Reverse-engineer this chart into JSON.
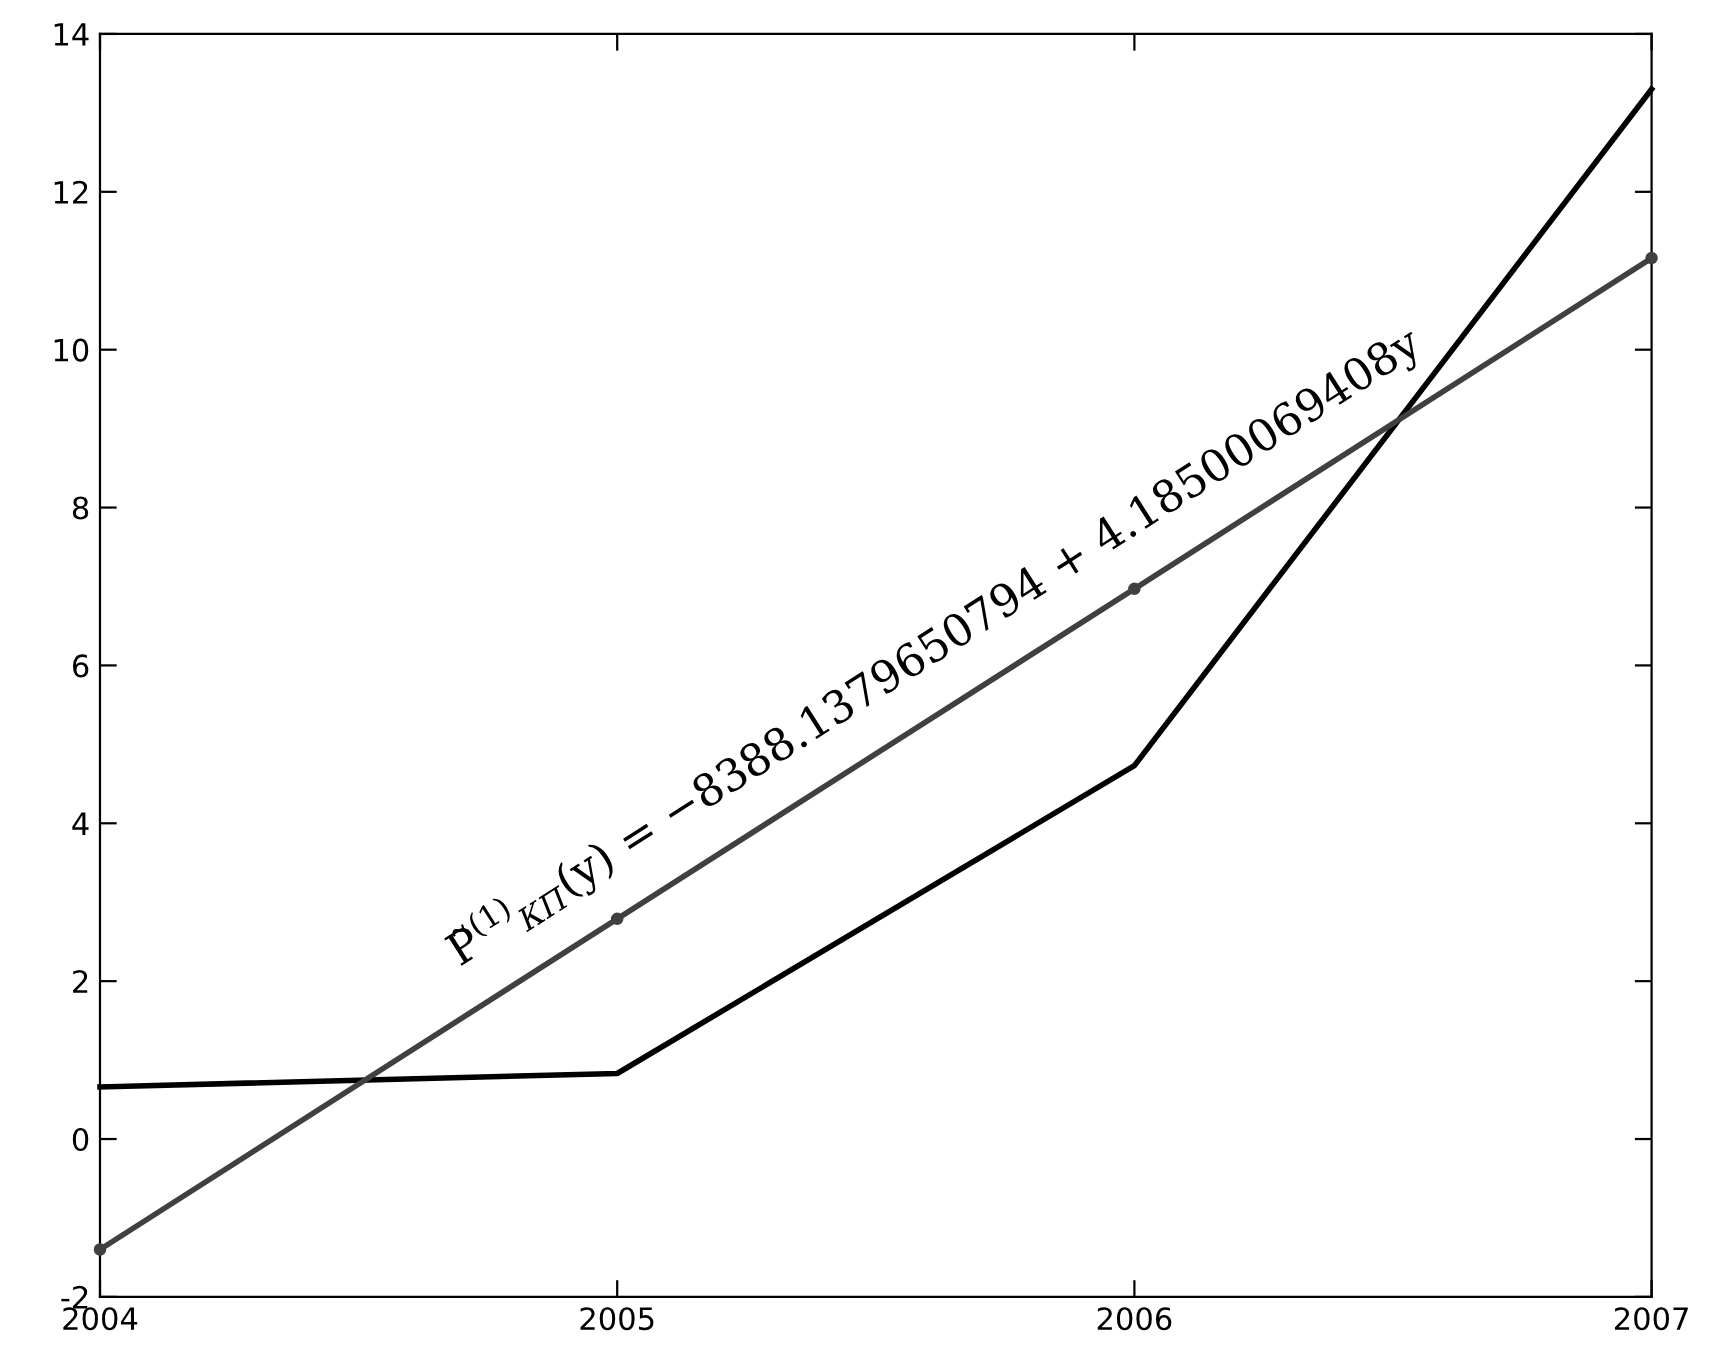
{
  "chart_data": {
    "type": "line",
    "x": [
      2004,
      2005,
      2006,
      2007
    ],
    "series": [
      {
        "color": "#000000",
        "values": [
          0.66,
          0.83,
          4.73,
          13.3
        ],
        "marker": "none"
      },
      {
        "color": "#404040",
        "values": [
          -1.4,
          2.79,
          6.97,
          11.16
        ],
        "marker": "circle"
      }
    ],
    "xlim": [
      2004,
      2007
    ],
    "xticks": [
      2004,
      2005,
      2006,
      2007
    ],
    "ylim": [
      -2,
      14
    ],
    "yticks": [
      -2,
      0,
      2,
      4,
      6,
      8,
      10,
      12,
      14
    ],
    "grid": false,
    "legend": false,
    "annotations": [
      "P̃$^{(1)}$$_{КП}$(y) = −8388.1379650794 + 4.18500069408y"
    ]
  }
}
